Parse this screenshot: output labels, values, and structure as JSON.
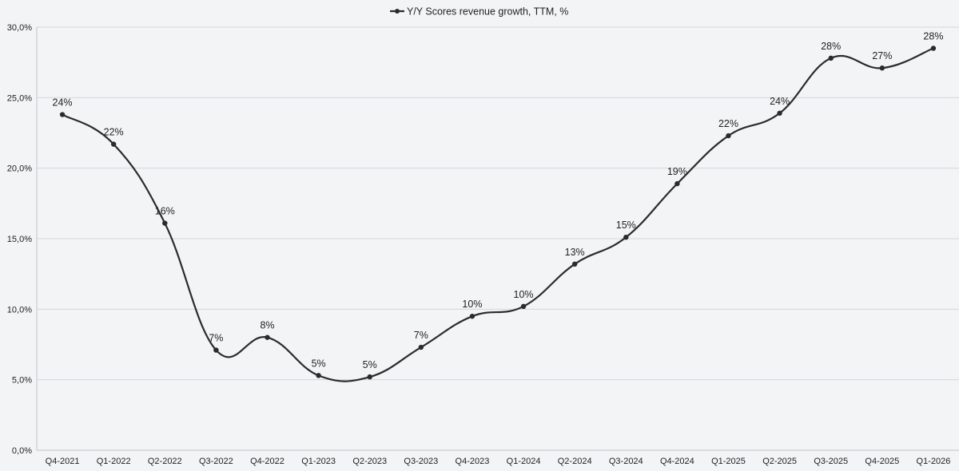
{
  "chart_data": {
    "type": "line",
    "title": "",
    "xlabel": "",
    "ylabel": "",
    "categories": [
      "Q4-2021",
      "Q1-2022",
      "Q2-2022",
      "Q3-2022",
      "Q4-2022",
      "Q1-2023",
      "Q2-2023",
      "Q3-2023",
      "Q4-2023",
      "Q1-2024",
      "Q2-2024",
      "Q3-2024",
      "Q4-2024",
      "Q1-2025",
      "Q2-2025",
      "Q3-2025",
      "Q4-2025",
      "Q1-2026"
    ],
    "series": [
      {
        "name": "Y/Y Scores revenue growth, TTM, %",
        "color": "#2b2b2e",
        "values": [
          23.8,
          21.7,
          16.1,
          7.1,
          8.0,
          5.3,
          5.2,
          7.3,
          9.5,
          10.2,
          13.2,
          15.1,
          18.9,
          22.3,
          23.9,
          27.8,
          27.1,
          28.5
        ],
        "data_labels": [
          "24%",
          "22%",
          "16%",
          "7%",
          "8%",
          "5%",
          "5%",
          "7%",
          "10%",
          "10%",
          "13%",
          "15%",
          "19%",
          "22%",
          "24%",
          "28%",
          "27%",
          "28%"
        ]
      }
    ],
    "ylim": [
      0,
      30
    ],
    "yticks": [
      0,
      5,
      10,
      15,
      20,
      25,
      30
    ],
    "ytick_labels": [
      "0,0%",
      "5,0%",
      "10,0%",
      "15,0%",
      "20,0%",
      "25,0%",
      "30,0%"
    ],
    "grid": true,
    "legend": "top-center",
    "smooth": true
  }
}
